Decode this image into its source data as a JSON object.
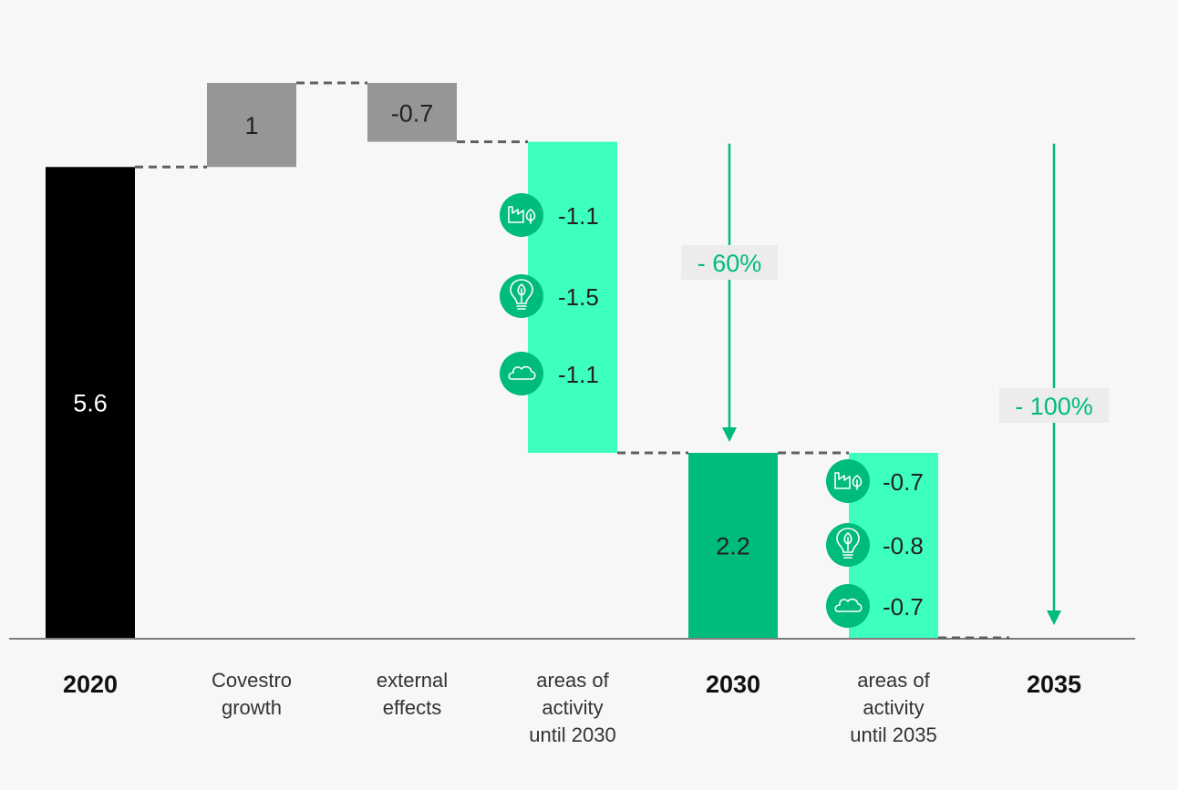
{
  "colors": {
    "background": "#f7f7f7",
    "start_bar": "#000000",
    "increase_bar": "#969696",
    "activity_bar": "#3dffc0",
    "milestone_bar": "#00bb7e",
    "accent": "#00bb7e",
    "icon_bg": "#00bb7e",
    "connector": "#606060",
    "baseline": "#555555"
  },
  "chart_data": {
    "type": "waterfall",
    "ylim": [
      0,
      7
    ],
    "categories": [
      {
        "id": "c2020",
        "label_lines": [
          "2020"
        ],
        "bold": true
      },
      {
        "id": "cgrowth",
        "label_lines": [
          "Covestro",
          "growth"
        ],
        "bold": false
      },
      {
        "id": "cexternal",
        "label_lines": [
          "external",
          "effects"
        ],
        "bold": false
      },
      {
        "id": "cact2030",
        "label_lines": [
          "areas of",
          "activity",
          "until 2030"
        ],
        "bold": false
      },
      {
        "id": "c2030",
        "label_lines": [
          "2030"
        ],
        "bold": true
      },
      {
        "id": "cact2035",
        "label_lines": [
          "areas of",
          "activity",
          "until 2035"
        ],
        "bold": false
      },
      {
        "id": "c2035",
        "label_lines": [
          "2035"
        ],
        "bold": true
      }
    ],
    "bars": [
      {
        "category": "2020",
        "kind": "total",
        "start": 0,
        "end": 5.6,
        "label": "5.6",
        "color_key": "start_bar",
        "label_color": "#ffffff"
      },
      {
        "category": "Covestro growth",
        "kind": "delta",
        "start": 5.6,
        "end": 6.6,
        "label": "1",
        "color_key": "increase_bar",
        "label_color": "#222222"
      },
      {
        "category": "external effects",
        "kind": "delta",
        "start": 6.6,
        "end": 5.9,
        "label": "-0.7",
        "color_key": "increase_bar",
        "label_color": "#222222"
      },
      {
        "category": "areas of activity until 2030",
        "kind": "delta",
        "start": 5.9,
        "end": 2.2,
        "label": "",
        "color_key": "activity_bar",
        "label_color": "#222222"
      },
      {
        "category": "2030",
        "kind": "total",
        "start": 0,
        "end": 2.2,
        "label": "2.2",
        "color_key": "milestone_bar",
        "label_color": "#222222"
      },
      {
        "category": "areas of activity until 2035",
        "kind": "delta",
        "start": 2.2,
        "end": 0,
        "label": "",
        "color_key": "activity_bar",
        "label_color": "#222222"
      },
      {
        "category": "2035",
        "kind": "total",
        "start": 0,
        "end": 0,
        "label": "",
        "color_key": "milestone_bar",
        "label_color": "#222222"
      }
    ],
    "breakdowns": [
      {
        "category": "areas of activity until 2030",
        "items": [
          {
            "icon": "factory-leaf-icon",
            "value": -1.1,
            "label": "-1.1"
          },
          {
            "icon": "lightbulb-leaf-icon",
            "value": -1.5,
            "label": "-1.5"
          },
          {
            "icon": "cloud-icon",
            "value": -1.1,
            "label": "-1.1"
          }
        ]
      },
      {
        "category": "areas of activity until 2035",
        "items": [
          {
            "icon": "factory-leaf-icon",
            "value": -0.7,
            "label": "-0.7"
          },
          {
            "icon": "lightbulb-leaf-icon",
            "value": -0.8,
            "label": "-0.8"
          },
          {
            "icon": "cloud-icon",
            "value": -0.7,
            "label": "-0.7"
          }
        ]
      }
    ],
    "annotations": [
      {
        "label": "- 60%",
        "from_value": 5.9,
        "to_value": 2.2,
        "category": "2030"
      },
      {
        "label": "- 100%",
        "from_value": 5.9,
        "to_value": 0,
        "category": "2035"
      }
    ]
  }
}
